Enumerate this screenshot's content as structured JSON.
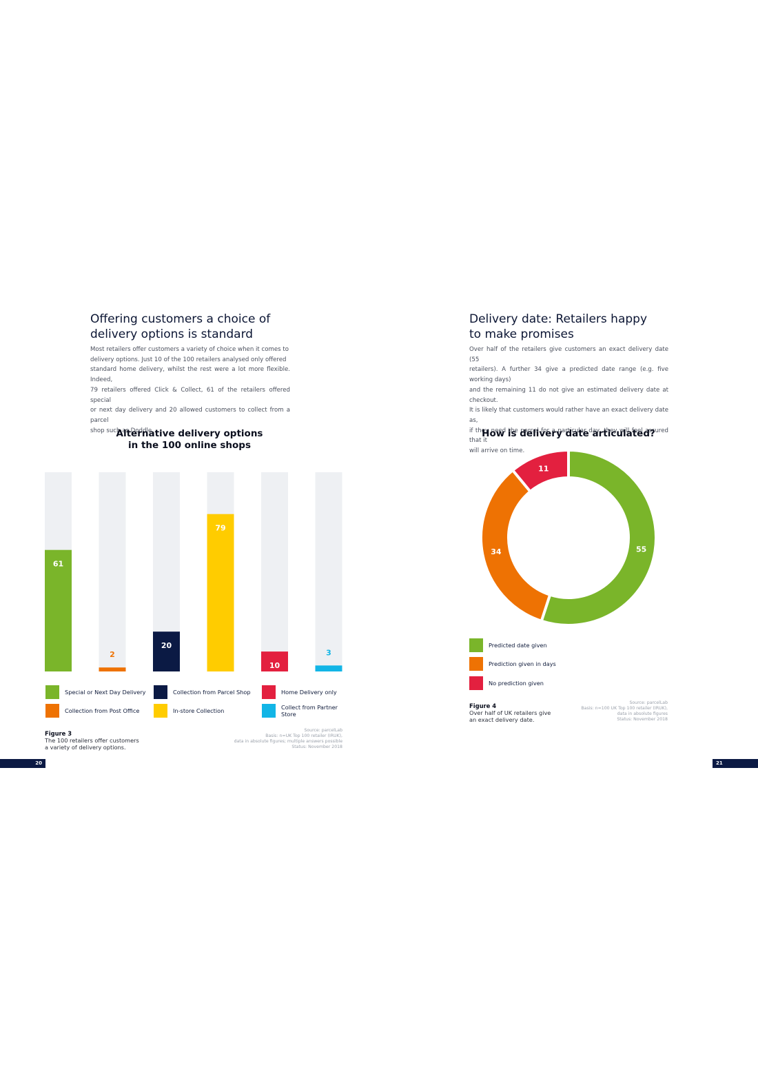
{
  "left_page": {
    "heading_line1": "Offering customers a choice of",
    "heading_line2": "delivery options is standard",
    "paragraph_lines": [
      "Most retailers offer customers a variety of choice when it comes to",
      "delivery options. Just 10 of the 100 retailers analysed only offered",
      "standard home delivery, whilst the rest were a lot more flexible. Indeed,",
      "79 retailers offered Click & Collect, 61 of the retailers offered special",
      "or next day delivery and 20 allowed customers to collect from a parcel",
      "shop such as Doddle."
    ],
    "figure_label": "Figure 3",
    "figure_caption_line1": "The 100 retailers offer customers",
    "figure_caption_line2": "a variety of delivery options.",
    "source_lines": [
      "Source: parcelLab",
      "Basis: n=UK Top 100 retailer (IRUK),",
      "data in absolute figures; multiple answers possible",
      "Status: November 2018"
    ],
    "page_number": "20"
  },
  "right_page": {
    "heading_line1": "Delivery date: Retailers happy",
    "heading_line2": "to make promises",
    "paragraph_lines": [
      "Over half of the retailers give customers an exact delivery date (55",
      "retailers). A further 34 give a predicted date range (e.g. five working days)",
      "and the remaining 11 do not give an estimated delivery date at checkout.",
      "It is likely that customers would rather have an exact delivery date as,",
      "if they need the parcel for a particular day, they will feel assured that it",
      "will arrive on time."
    ],
    "figure_label": "Figure 4",
    "figure_caption_line1": "Over half of UK retailers give",
    "figure_caption_line2": "an exact delivery date.",
    "source_lines": [
      "Source: parcelLab",
      "Basis: n=100 UK Top 100 retailer (IRUK),",
      "data in absolute figures",
      "Status: November 2018"
    ],
    "page_number": "21"
  },
  "chart_data": [
    {
      "type": "bar",
      "title_line1": "Alternative delivery options",
      "title_line2": "in the 100 online shops",
      "ylim": [
        0,
        100
      ],
      "categories": [
        "Special or Next Day Delivery",
        "Collection from Post Office",
        "Collection from Parcel Shop",
        "In-store Collection",
        "Home Delivery only",
        "Collect from Partner Store"
      ],
      "values": [
        61,
        2,
        20,
        79,
        10,
        3
      ],
      "colors": [
        "#7ab52a",
        "#ee7203",
        "#0b1a44",
        "#ffcc00",
        "#e3203f",
        "#12b5e6"
      ],
      "label_inside": [
        true,
        false,
        true,
        true,
        true,
        false
      ],
      "track_color": "#eef0f3",
      "legend": [
        {
          "label": "Special or Next Day Delivery",
          "color": "#7ab52a"
        },
        {
          "label": "Collection from Parcel Shop",
          "color": "#0b1a44"
        },
        {
          "label": "Home Delivery only",
          "color": "#e3203f"
        },
        {
          "label": "Collection from Post Office",
          "color": "#ee7203"
        },
        {
          "label": "In-store Collection",
          "color": "#ffcc00"
        },
        {
          "label": "Collect from Partner Store",
          "color": "#12b5e6"
        }
      ]
    },
    {
      "type": "pie",
      "title": "How is delivery date articulated?",
      "categories": [
        "Predicted date given",
        "Prediction given in days",
        "No prediction given"
      ],
      "values": [
        55,
        34,
        11
      ],
      "colors": [
        "#7ab52a",
        "#ee7203",
        "#e3203f"
      ],
      "legend": [
        {
          "label": "Predicted date given",
          "color": "#7ab52a"
        },
        {
          "label": "Prediction given in days",
          "color": "#ee7203"
        },
        {
          "label": "No prediction given",
          "color": "#e3203f"
        }
      ]
    }
  ]
}
